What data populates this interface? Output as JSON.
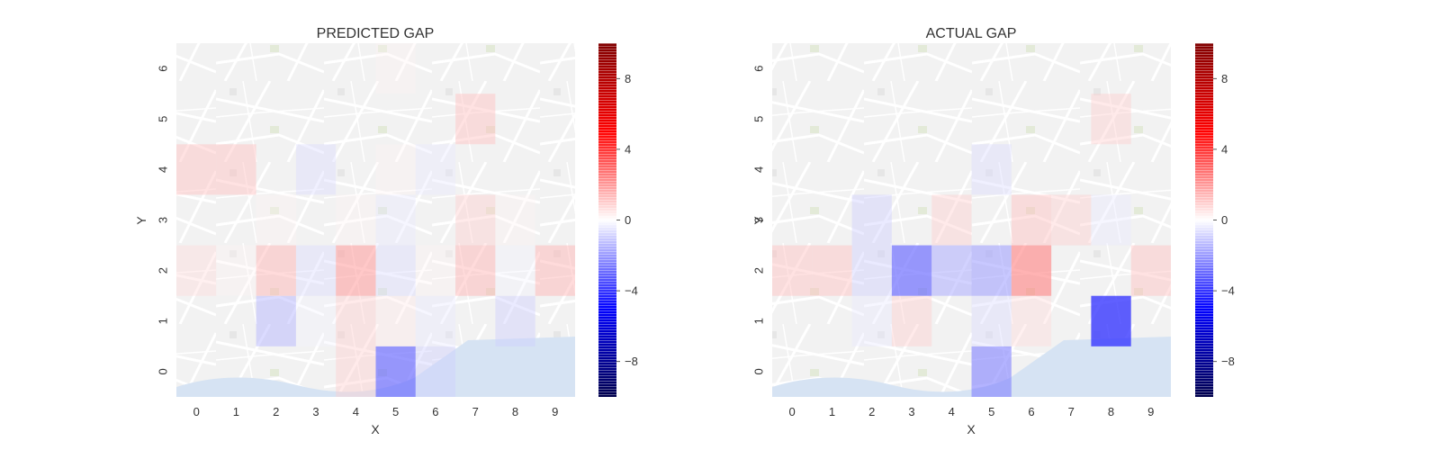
{
  "chart_data": [
    {
      "type": "heatmap",
      "title": "PREDICTED GAP",
      "xlabel": "X",
      "ylabel": "Y",
      "x_ticks": [
        "0",
        "1",
        "2",
        "3",
        "4",
        "5",
        "6",
        "7",
        "8",
        "9"
      ],
      "y_ticks": [
        "0",
        "1",
        "2",
        "3",
        "4",
        "5",
        "6"
      ],
      "background": "street map of Porto",
      "colormap": "seismic",
      "vmin": -10,
      "vmax": 10,
      "colorbar_ticks": [
        "8",
        "4",
        "0",
        "−4",
        "−8"
      ],
      "values": [
        [
          0,
          0,
          0,
          0,
          2,
          -6,
          -2,
          0,
          0,
          0
        ],
        [
          0,
          0,
          -3,
          -0.5,
          2,
          1,
          -1,
          0,
          -2,
          0
        ],
        [
          1.5,
          0.5,
          3,
          -1.5,
          4,
          -1.5,
          0.5,
          3,
          -0.5,
          3
        ],
        [
          0,
          0,
          0.5,
          0,
          0.5,
          -1,
          0,
          2,
          0.5,
          0
        ],
        [
          2.5,
          2.5,
          0,
          -1.5,
          0,
          0.5,
          -1,
          0,
          0,
          0
        ],
        [
          0,
          0,
          0,
          0,
          0,
          0,
          0,
          2.5,
          0,
          0
        ],
        [
          0,
          0,
          0,
          0,
          0,
          0.5,
          0,
          0,
          0,
          0
        ]
      ]
    },
    {
      "type": "heatmap",
      "title": "ACTUAL GAP",
      "xlabel": "X",
      "ylabel": "Y",
      "x_ticks": [
        "0",
        "1",
        "2",
        "3",
        "4",
        "5",
        "6",
        "7",
        "8",
        "9"
      ],
      "y_ticks": [
        "0",
        "1",
        "2",
        "3",
        "4",
        "5",
        "6"
      ],
      "background": "street map of Porto",
      "colormap": "seismic",
      "vmin": -10,
      "vmax": 10,
      "colorbar_ticks": [
        "8",
        "4",
        "0",
        "−4",
        "−8"
      ],
      "values": [
        [
          0,
          0,
          0,
          0,
          0,
          -5,
          0,
          0,
          0,
          0
        ],
        [
          0,
          0,
          -1,
          2,
          0,
          -1.5,
          1.5,
          0,
          -8,
          0
        ],
        [
          2.5,
          2.5,
          -2,
          -6,
          -3.5,
          -4,
          5,
          0,
          0,
          2.5
        ],
        [
          0,
          0,
          -2,
          0,
          2,
          0,
          2.5,
          2,
          -1,
          0
        ],
        [
          0,
          0,
          0,
          0,
          0,
          -1.5,
          0,
          0,
          0,
          0
        ],
        [
          0,
          0,
          0,
          0,
          0,
          0,
          0,
          0,
          2,
          0
        ],
        [
          0,
          0,
          0,
          0,
          0,
          0,
          0,
          0,
          0,
          0
        ]
      ]
    }
  ]
}
